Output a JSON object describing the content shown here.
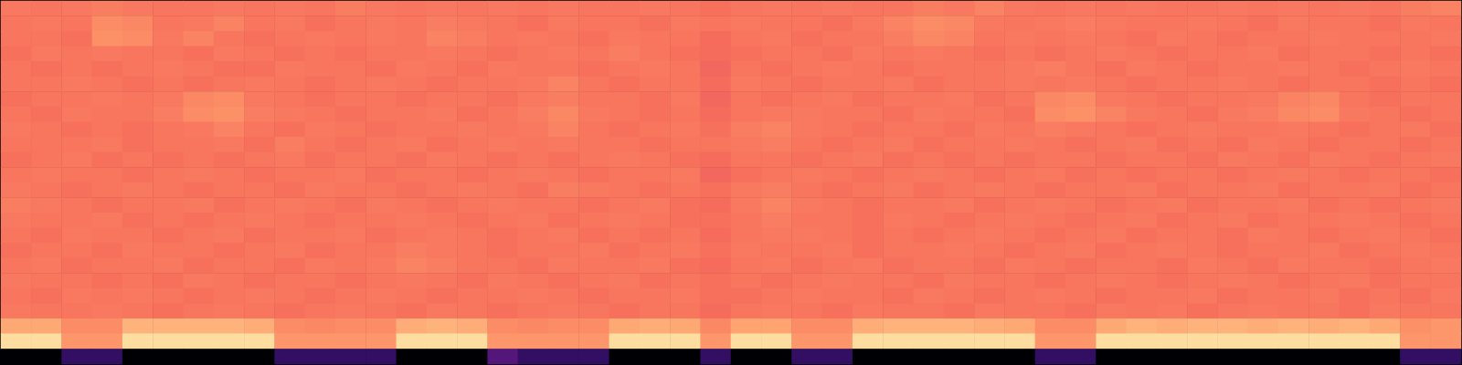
{
  "chart_data": {
    "type": "heatmap",
    "tick_labels": false,
    "zlim": [
      4,
      104
    ],
    "values": [
      [
        76,
        75,
        76,
        77,
        76,
        75,
        75,
        76,
        75,
        76,
        75,
        77,
        76,
        75,
        76,
        75,
        76,
        75,
        76,
        75,
        75,
        76,
        75,
        74,
        75,
        76,
        75,
        76,
        75,
        75,
        77,
        76,
        78,
        76,
        75,
        76,
        75,
        76,
        75,
        75,
        76,
        75,
        76,
        75,
        76,
        75,
        77,
        78
      ],
      [
        75,
        76,
        75,
        80,
        79,
        75,
        76,
        78,
        75,
        76,
        74,
        75,
        76,
        75,
        77,
        76,
        75,
        74,
        76,
        75,
        75,
        74,
        76,
        75,
        76,
        75,
        75,
        74,
        76,
        78,
        80,
        79,
        76,
        75,
        76,
        77,
        76,
        75,
        75,
        76,
        75,
        74,
        76,
        75,
        75,
        74,
        76,
        75
      ],
      [
        75,
        75,
        74,
        81,
        80,
        76,
        78,
        75,
        74,
        75,
        76,
        75,
        76,
        75,
        78,
        77,
        75,
        76,
        75,
        74,
        76,
        75,
        75,
        73,
        75,
        76,
        74,
        75,
        75,
        77,
        79,
        78,
        75,
        76,
        75,
        76,
        75,
        74,
        76,
        75,
        74,
        75,
        75,
        76,
        75,
        75,
        75,
        76
      ],
      [
        74,
        76,
        75,
        76,
        75,
        75,
        74,
        76,
        75,
        74,
        75,
        74,
        75,
        75,
        76,
        75,
        74,
        75,
        76,
        75,
        77,
        75,
        74,
        73,
        74,
        75,
        75,
        74,
        76,
        75,
        76,
        75,
        74,
        75,
        74,
        75,
        76,
        75,
        74,
        75,
        75,
        76,
        74,
        75,
        75,
        74,
        75,
        74
      ],
      [
        75,
        74,
        75,
        74,
        75,
        76,
        75,
        74,
        74,
        76,
        75,
        75,
        74,
        76,
        75,
        74,
        76,
        75,
        75,
        74,
        75,
        76,
        75,
        72,
        75,
        74,
        75,
        76,
        75,
        74,
        75,
        75,
        75,
        76,
        77,
        75,
        74,
        76,
        75,
        74,
        75,
        75,
        76,
        75,
        74,
        75,
        76,
        75
      ],
      [
        75,
        75,
        76,
        75,
        74,
        75,
        74,
        75,
        76,
        75,
        74,
        75,
        76,
        75,
        74,
        75,
        75,
        76,
        78,
        75,
        74,
        75,
        75,
        73,
        76,
        75,
        74,
        75,
        75,
        76,
        74,
        75,
        75,
        76,
        75,
        76,
        75,
        74,
        75,
        75,
        76,
        75,
        74,
        75,
        75,
        74,
        75,
        74
      ],
      [
        74,
        75,
        75,
        76,
        75,
        76,
        79,
        80,
        76,
        75,
        74,
        75,
        75,
        74,
        75,
        75,
        74,
        76,
        77,
        75,
        75,
        74,
        76,
        72,
        75,
        74,
        75,
        76,
        74,
        75,
        75,
        76,
        74,
        75,
        79,
        80,
        76,
        75,
        74,
        75,
        75,
        76,
        78,
        79,
        75,
        74,
        75,
        75
      ],
      [
        75,
        74,
        76,
        75,
        75,
        77,
        80,
        81,
        77,
        76,
        75,
        74,
        75,
        75,
        76,
        74,
        75,
        77,
        79,
        76,
        75,
        74,
        75,
        73,
        75,
        76,
        76,
        75,
        75,
        74,
        76,
        75,
        75,
        74,
        80,
        81,
        78,
        76,
        75,
        74,
        76,
        77,
        79,
        80,
        76,
        75,
        74,
        75
      ],
      [
        76,
        75,
        74,
        75,
        74,
        75,
        76,
        78,
        75,
        74,
        76,
        75,
        74,
        75,
        75,
        76,
        75,
        76,
        78,
        75,
        74,
        75,
        76,
        74,
        77,
        78,
        76,
        75,
        74,
        75,
        75,
        74,
        76,
        75,
        77,
        76,
        75,
        74,
        75,
        76,
        75,
        75,
        76,
        75,
        74,
        75,
        76,
        74
      ],
      [
        75,
        75,
        75,
        76,
        74,
        75,
        75,
        76,
        74,
        77,
        75,
        74,
        75,
        76,
        74,
        75,
        76,
        75,
        76,
        75,
        75,
        74,
        75,
        75,
        76,
        77,
        75,
        74,
        75,
        76,
        74,
        75,
        75,
        76,
        75,
        74,
        75,
        76,
        74,
        75,
        74,
        76,
        75,
        74,
        75,
        75,
        74,
        75
      ],
      [
        74,
        75,
        76,
        74,
        75,
        74,
        75,
        74,
        75,
        76,
        74,
        75,
        75,
        74,
        76,
        75,
        74,
        75,
        74,
        75,
        76,
        75,
        74,
        73,
        75,
        75,
        74,
        75,
        76,
        74,
        75,
        74,
        75,
        74,
        75,
        75,
        74,
        75,
        75,
        74,
        76,
        75,
        74,
        76,
        75,
        74,
        75,
        76
      ],
      [
        75,
        76,
        75,
        75,
        74,
        75,
        76,
        75,
        74,
        75,
        75,
        76,
        74,
        75,
        75,
        74,
        75,
        76,
        75,
        74,
        75,
        75,
        76,
        72,
        74,
        75,
        76,
        75,
        74,
        75,
        76,
        75,
        74,
        75,
        76,
        74,
        75,
        74,
        75,
        75,
        74,
        75,
        76,
        75,
        74,
        75,
        75,
        74
      ],
      [
        76,
        75,
        74,
        75,
        76,
        75,
        74,
        75,
        75,
        74,
        76,
        75,
        75,
        74,
        75,
        76,
        75,
        74,
        77,
        76,
        75,
        74,
        75,
        74,
        76,
        77,
        75,
        74,
        75,
        76,
        74,
        75,
        76,
        75,
        74,
        75,
        75,
        76,
        74,
        75,
        75,
        76,
        74,
        75,
        75,
        76,
        74,
        75
      ],
      [
        77,
        76,
        75,
        74,
        75,
        75,
        76,
        74,
        75,
        76,
        75,
        74,
        76,
        75,
        74,
        75,
        76,
        75,
        75,
        74,
        75,
        76,
        74,
        73,
        76,
        78,
        76,
        75,
        74,
        75,
        75,
        76,
        74,
        75,
        76,
        75,
        74,
        75,
        76,
        74,
        75,
        75,
        76,
        74,
        75,
        74,
        75,
        76
      ],
      [
        76,
        75,
        75,
        76,
        74,
        75,
        74,
        75,
        76,
        75,
        74,
        75,
        75,
        76,
        75,
        74,
        75,
        76,
        74,
        75,
        76,
        75,
        74,
        74,
        75,
        77,
        75,
        75,
        74,
        76,
        75,
        74,
        75,
        76,
        75,
        74,
        75,
        76,
        74,
        75,
        76,
        74,
        75,
        75,
        76,
        75,
        74,
        75
      ],
      [
        75,
        74,
        76,
        75,
        75,
        74,
        75,
        76,
        74,
        75,
        75,
        76,
        74,
        75,
        76,
        75,
        74,
        75,
        76,
        74,
        75,
        74,
        75,
        73,
        75,
        76,
        76,
        75,
        74,
        75,
        74,
        75,
        76,
        75,
        74,
        75,
        76,
        74,
        75,
        75,
        74,
        76,
        75,
        74,
        75,
        76,
        75,
        74
      ],
      [
        74,
        75,
        75,
        74,
        76,
        75,
        75,
        74,
        75,
        76,
        74,
        75,
        75,
        77,
        76,
        75,
        74,
        75,
        75,
        76,
        74,
        75,
        76,
        74,
        76,
        75,
        75,
        76,
        74,
        75,
        75,
        76,
        75,
        74,
        75,
        76,
        74,
        75,
        76,
        75,
        74,
        75,
        75,
        76,
        74,
        75,
        76,
        75
      ],
      [
        75,
        76,
        74,
        75,
        75,
        76,
        74,
        75,
        75,
        74,
        76,
        75,
        76,
        78,
        77,
        75,
        75,
        74,
        76,
        75,
        75,
        76,
        74,
        73,
        75,
        76,
        74,
        75,
        76,
        74,
        75,
        75,
        74,
        76,
        75,
        74,
        75,
        75,
        74,
        76,
        75,
        74,
        76,
        75,
        75,
        74,
        75,
        76
      ],
      [
        76,
        75,
        75,
        74,
        75,
        74,
        76,
        75,
        74,
        75,
        75,
        74,
        75,
        76,
        75,
        74,
        76,
        75,
        74,
        75,
        76,
        74,
        75,
        74,
        75,
        74,
        75,
        76,
        75,
        75,
        74,
        76,
        75,
        75,
        74,
        75,
        76,
        75,
        74,
        75,
        76,
        75,
        74,
        75,
        76,
        74,
        75,
        75
      ],
      [
        75,
        74,
        76,
        75,
        76,
        75,
        74,
        75,
        76,
        75,
        74,
        75,
        76,
        75,
        74,
        75,
        75,
        76,
        75,
        74,
        75,
        75,
        76,
        74,
        74,
        75,
        76,
        75,
        75,
        74,
        76,
        75,
        74,
        75,
        76,
        75,
        74,
        75,
        75,
        76,
        74,
        75,
        75,
        76,
        74,
        75,
        74,
        76
      ],
      [
        76,
        75,
        75,
        76,
        75,
        74,
        75,
        76,
        75,
        74,
        75,
        76,
        75,
        74,
        76,
        75,
        74,
        75,
        76,
        75,
        74,
        75,
        75,
        73,
        75,
        76,
        75,
        74,
        76,
        75,
        75,
        74,
        76,
        75,
        75,
        74,
        76,
        75,
        76,
        74,
        75,
        76,
        75,
        75,
        74,
        76,
        75,
        75
      ],
      [
        86,
        86,
        80,
        80,
        88,
        88,
        88,
        88,
        87,
        80,
        79,
        80,
        80,
        87,
        88,
        87,
        80,
        79,
        80,
        80,
        86,
        87,
        86,
        79,
        85,
        85,
        80,
        80,
        87,
        88,
        88,
        88,
        87,
        86,
        80,
        80,
        86,
        88,
        87,
        88,
        88,
        87,
        88,
        87,
        88,
        86,
        81,
        82
      ],
      [
        97,
        97,
        82,
        82,
        97,
        97,
        97,
        97,
        97,
        82,
        82,
        82,
        82,
        97,
        97,
        97,
        82,
        82,
        82,
        82,
        97,
        97,
        97,
        82,
        97,
        97,
        82,
        82,
        97,
        97,
        97,
        97,
        97,
        97,
        82,
        82,
        97,
        97,
        97,
        97,
        97,
        97,
        97,
        97,
        97,
        97,
        82,
        82
      ],
      [
        4,
        4,
        22,
        22,
        4,
        4,
        4,
        4,
        4,
        22,
        22,
        22,
        22,
        4,
        4,
        4,
        30,
        22,
        22,
        22,
        4,
        4,
        4,
        22,
        4,
        4,
        22,
        22,
        4,
        4,
        4,
        4,
        4,
        4,
        22,
        22,
        4,
        4,
        4,
        4,
        4,
        4,
        4,
        4,
        4,
        4,
        22,
        22
      ]
    ]
  }
}
